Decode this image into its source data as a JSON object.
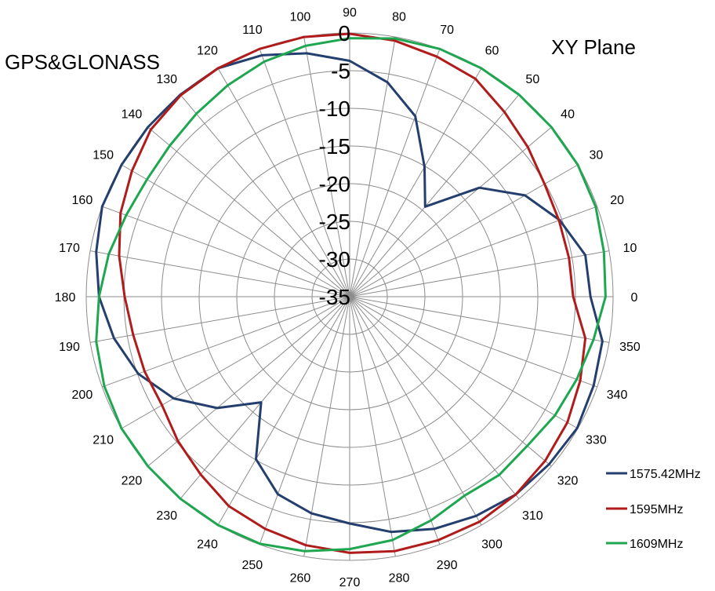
{
  "chart_data": {
    "type": "polar-line",
    "title_left": "GPS&GLONASS",
    "title_right": "XY Plane",
    "angle_unit": "degrees",
    "angles": [
      0,
      10,
      20,
      30,
      40,
      50,
      60,
      70,
      80,
      90,
      100,
      110,
      120,
      130,
      140,
      150,
      160,
      170,
      180,
      190,
      200,
      210,
      220,
      230,
      240,
      250,
      260,
      270,
      280,
      290,
      300,
      310,
      320,
      330,
      340,
      350
    ],
    "angle_tick_labels": [
      "0",
      "10",
      "20",
      "30",
      "40",
      "50",
      "60",
      "70",
      "80",
      "90",
      "100",
      "110",
      "120",
      "130",
      "140",
      "150",
      "160",
      "170",
      "180",
      "190",
      "200",
      "210",
      "220",
      "230",
      "240",
      "250",
      "260",
      "270",
      "280",
      "290",
      "300",
      "310",
      "320",
      "330",
      "340",
      "350"
    ],
    "radial_range": [
      -35,
      0
    ],
    "radial_tick_labels": [
      "0",
      "-5",
      "-10",
      "-15",
      "-20",
      "-25",
      "-30",
      "-35"
    ],
    "radial_ticks": [
      0,
      -5,
      -10,
      -15,
      -20,
      -25,
      -30,
      -35
    ],
    "grid": true,
    "legend_position": "bottom-right",
    "series": [
      {
        "name": "1575.42MHz",
        "color": "#243f6e",
        "values": [
          -3.0,
          -3.2,
          -5.3,
          -8.1,
          -12.5,
          -19.4,
          -15.1,
          -9.5,
          -6.1,
          -3.7,
          -2.2,
          -0.9,
          0,
          0,
          0,
          0,
          0,
          -0.8,
          -1.7,
          -3.2,
          -5.1,
          -8.0,
          -12.0,
          -16.7,
          -10.1,
          -7.1,
          -5.8,
          -4.9,
          -3.3,
          -2.2,
          -1.4,
          -0.7,
          -0.4,
          -0.1,
          -0.5,
          -0.9
        ]
      },
      {
        "name": "1595MHz",
        "color": "#b01c1c",
        "values": [
          -5.3,
          -5.4,
          -5.4,
          -5.1,
          -4.1,
          -3.0,
          -1.6,
          -1.1,
          -0.5,
          -0.1,
          0,
          0,
          0,
          -0.1,
          -0.5,
          -1.6,
          -2.6,
          -3.9,
          -5.1,
          -5.8,
          -6.0,
          -6.2,
          -5.2,
          -4.2,
          -2.9,
          -2.2,
          -1.5,
          -1.0,
          -0.7,
          -0.6,
          -0.5,
          -0.7,
          -1.1,
          -1.6,
          -2.4,
          -3.2
        ]
      },
      {
        "name": "1609MHz",
        "color": "#1fa651",
        "values": [
          -1.0,
          -0.7,
          -0.2,
          0,
          0,
          0,
          0,
          0,
          -0.2,
          -0.7,
          -1.2,
          -1.8,
          -2.6,
          -3.3,
          -3.8,
          -3.9,
          -3.4,
          -2.5,
          -1.7,
          -0.8,
          -0.3,
          0,
          0,
          0,
          0,
          -0.1,
          -0.7,
          -1.5,
          -2.2,
          -3.4,
          -4.5,
          -4.1,
          -4.2,
          -3.5,
          -2.9,
          -2.1
        ]
      }
    ]
  }
}
